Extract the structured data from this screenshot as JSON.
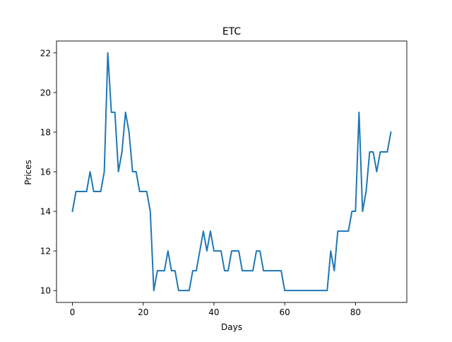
{
  "chart_data": {
    "type": "line",
    "title": "ETC",
    "xlabel": "Days",
    "ylabel": "Prices",
    "xlim": [
      -4.5,
      94.5
    ],
    "ylim": [
      9.4,
      22.6
    ],
    "xticks": [
      0,
      20,
      40,
      60,
      80
    ],
    "yticks": [
      10,
      12,
      14,
      16,
      18,
      20,
      22
    ],
    "grid": false,
    "legend": "none",
    "series": [
      {
        "color": "#1f77b4",
        "x": [
          0,
          1,
          2,
          3,
          4,
          5,
          6,
          7,
          8,
          9,
          10,
          11,
          12,
          13,
          14,
          15,
          16,
          17,
          18,
          19,
          20,
          21,
          22,
          23,
          24,
          25,
          26,
          27,
          28,
          29,
          30,
          31,
          32,
          33,
          34,
          35,
          36,
          37,
          38,
          39,
          40,
          41,
          42,
          43,
          44,
          45,
          46,
          47,
          48,
          49,
          50,
          51,
          52,
          53,
          54,
          55,
          56,
          57,
          58,
          59,
          60,
          61,
          62,
          63,
          64,
          65,
          66,
          67,
          68,
          69,
          70,
          71,
          72,
          73,
          74,
          75,
          76,
          77,
          78,
          79,
          80,
          81,
          82,
          83,
          84,
          85,
          86,
          87,
          88,
          89,
          90
        ],
        "values": [
          14,
          15,
          15,
          15,
          15,
          16,
          15,
          15,
          15,
          16,
          22,
          19,
          19,
          16,
          17,
          19,
          18,
          16,
          16,
          15,
          15,
          15,
          14,
          10,
          11,
          11,
          11,
          12,
          11,
          11,
          10,
          10,
          10,
          10,
          11,
          11,
          12,
          13,
          12,
          13,
          12,
          12,
          12,
          11,
          11,
          12,
          12,
          12,
          11,
          11,
          11,
          11,
          12,
          12,
          11,
          11,
          11,
          11,
          11,
          11,
          10,
          10,
          10,
          10,
          10,
          10,
          10,
          10,
          10,
          10,
          10,
          10,
          10,
          12,
          11,
          13,
          13,
          13,
          13,
          14,
          14,
          19,
          14,
          15,
          17,
          17,
          16,
          17,
          17,
          17,
          18
        ]
      }
    ]
  }
}
